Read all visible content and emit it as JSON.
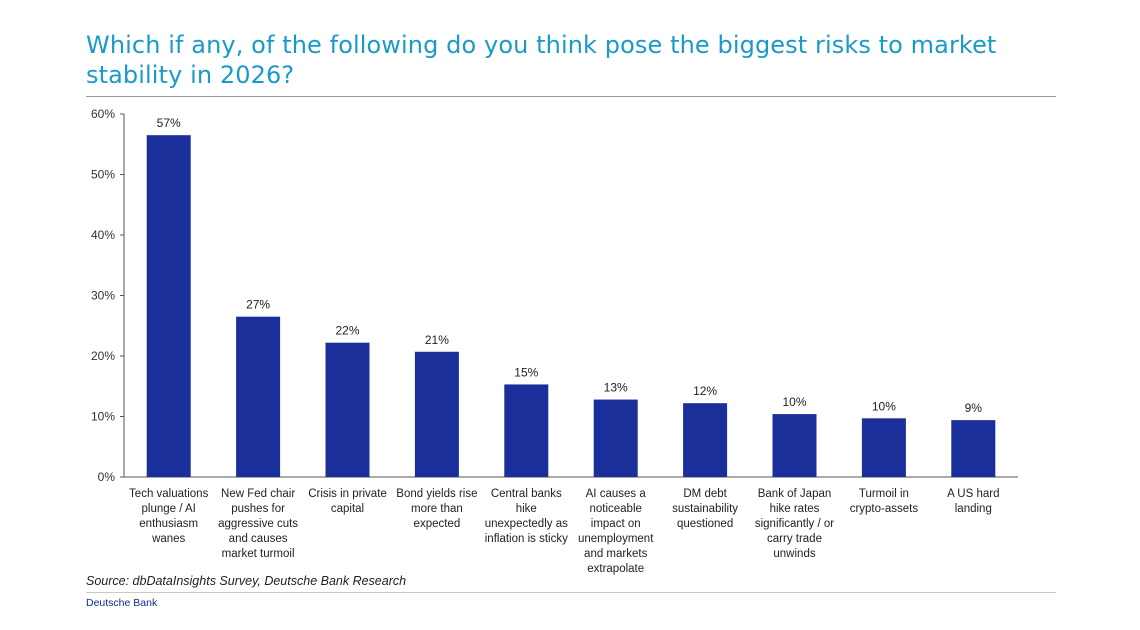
{
  "header": {
    "title": "Which if any, of the following do you think pose the biggest risks to market stability in 2026?"
  },
  "chart_data": {
    "type": "bar",
    "categories": [
      [
        "Tech valuations",
        "plunge / AI",
        "enthusiasm",
        "wanes"
      ],
      [
        "New Fed chair",
        "pushes for",
        "aggressive cuts",
        "and causes",
        "market turmoil"
      ],
      [
        "Crisis in private",
        "capital"
      ],
      [
        "Bond yields rise",
        "more than",
        "expected"
      ],
      [
        "Central banks",
        "hike",
        "unexpectedly as",
        "inflation is sticky"
      ],
      [
        "AI causes a",
        "noticeable",
        "impact on",
        "unemployment",
        "and markets",
        "extrapolate"
      ],
      [
        "DM debt",
        "sustainability",
        "questioned"
      ],
      [
        "Bank of Japan",
        "hike rates",
        "significantly / or",
        "carry trade",
        "unwinds"
      ],
      [
        "Turmoil in",
        "crypto-assets"
      ],
      [
        "A US hard",
        "landing"
      ]
    ],
    "values": [
      56.5,
      26.5,
      22.2,
      20.7,
      15.3,
      12.8,
      12.2,
      10.4,
      9.7,
      9.4
    ],
    "data_labels": [
      "57%",
      "27%",
      "22%",
      "21%",
      "15%",
      "13%",
      "12%",
      "10%",
      "10%",
      "9%"
    ],
    "ylim": [
      0,
      60
    ],
    "yticks": [
      0,
      10,
      20,
      30,
      40,
      50,
      60
    ],
    "ytick_labels": [
      "0%",
      "10%",
      "20%",
      "30%",
      "40%",
      "50%",
      "60%"
    ],
    "bar_color": "#1b2f9a",
    "grid": false,
    "xlabel": "",
    "ylabel": ""
  },
  "footer": {
    "source": "Source: dbDataInsights Survey, Deutsche Bank Research",
    "brand": "Deutsche Bank"
  }
}
